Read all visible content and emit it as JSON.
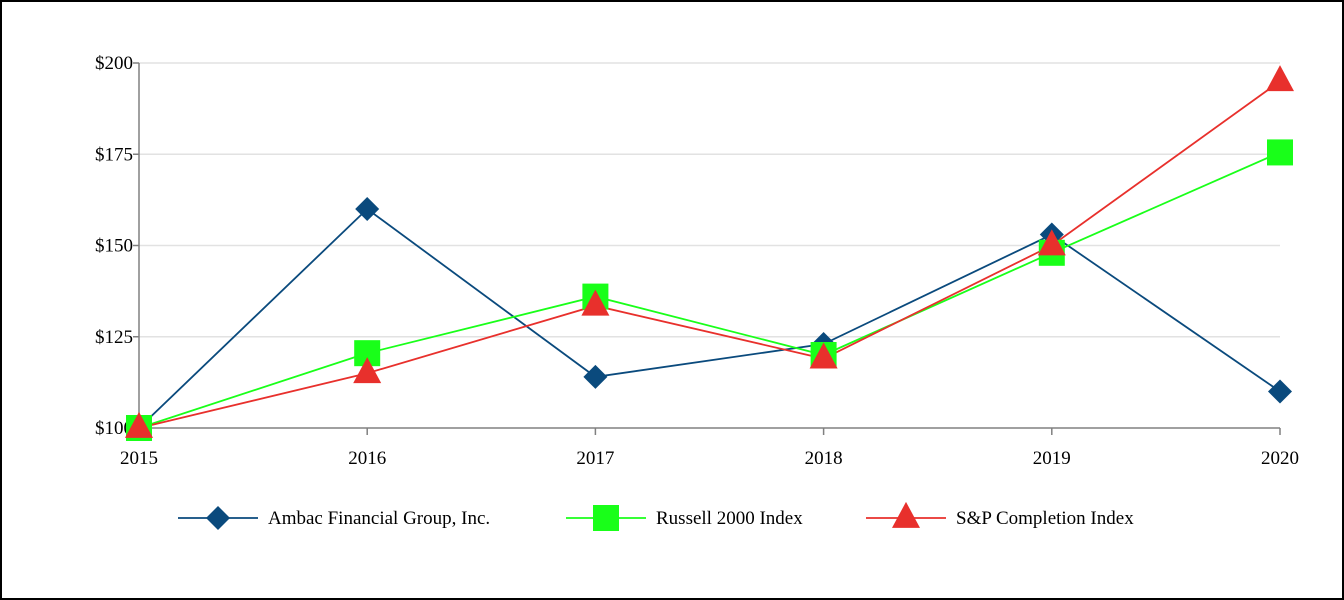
{
  "chart_data": {
    "type": "line",
    "x": [
      "2015",
      "2016",
      "2017",
      "2018",
      "2019",
      "2020"
    ],
    "y_ticks": [
      "$100",
      "$125",
      "$150",
      "$175",
      "$200"
    ],
    "ylim": [
      100,
      200
    ],
    "grid": true,
    "legend_position": "bottom",
    "series": [
      {
        "name": "Ambac Financial Group, Inc.",
        "color": "#0a4a7d",
        "marker": "diamond",
        "values": [
          100,
          160,
          114,
          123,
          153,
          110
        ]
      },
      {
        "name": "Russell 2000 Index",
        "color": "#19ff19",
        "marker": "square",
        "values": [
          100,
          120.5,
          136,
          120,
          148,
          175.5
        ]
      },
      {
        "name": "S&P Completion Index",
        "color": "#e8302c",
        "marker": "triangle",
        "values": [
          100,
          115,
          133.5,
          119,
          150,
          195
        ]
      }
    ]
  }
}
